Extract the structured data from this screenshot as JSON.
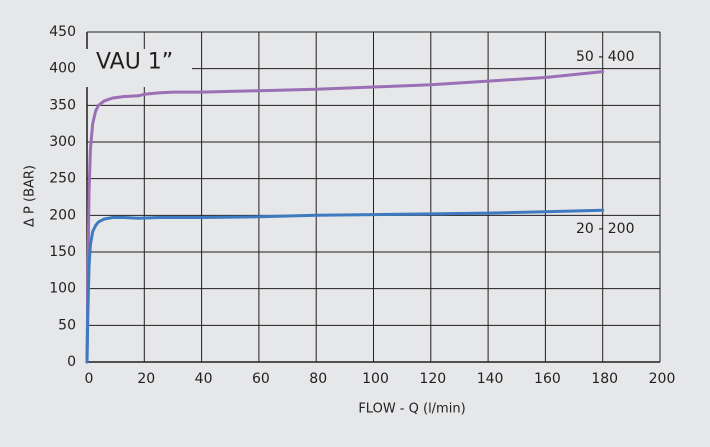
{
  "chart_data": {
    "type": "line",
    "title": "VAU 1”",
    "xlabel": "FLOW - Q (l/min)",
    "ylabel": "Δ P (BAR)",
    "xlim": [
      0,
      200
    ],
    "ylim": [
      0,
      450
    ],
    "xticks": [
      "0",
      "20",
      "40",
      "60",
      "80",
      "100",
      "120",
      "140",
      "160",
      "180",
      "200"
    ],
    "yticks": [
      "0",
      "50",
      "100",
      "150",
      "200",
      "250",
      "300",
      "350",
      "400",
      "450"
    ],
    "grid": true,
    "series": [
      {
        "name": "50 - 400",
        "color": "#9b6fb5",
        "x": [
          0,
          0.3,
          0.7,
          1.2,
          2,
          3,
          4,
          6,
          9,
          13,
          18,
          20,
          25,
          30,
          40,
          60,
          80,
          100,
          120,
          140,
          160,
          180
        ],
        "y": [
          0,
          120,
          230,
          290,
          325,
          342,
          350,
          356,
          360,
          362,
          363,
          365,
          367,
          368,
          368,
          370,
          372,
          375,
          378,
          383,
          388,
          396
        ]
      },
      {
        "name": "20 - 200",
        "color": "#3e7ac0",
        "x": [
          0,
          0.3,
          0.7,
          1.2,
          2,
          3,
          4,
          6,
          9,
          13,
          18,
          25,
          40,
          60,
          80,
          100,
          120,
          140,
          160,
          180
        ],
        "y": [
          0,
          70,
          130,
          160,
          178,
          186,
          191,
          195,
          197,
          197,
          196,
          197,
          197,
          198,
          200,
          201,
          202,
          203,
          205,
          207
        ]
      }
    ]
  }
}
